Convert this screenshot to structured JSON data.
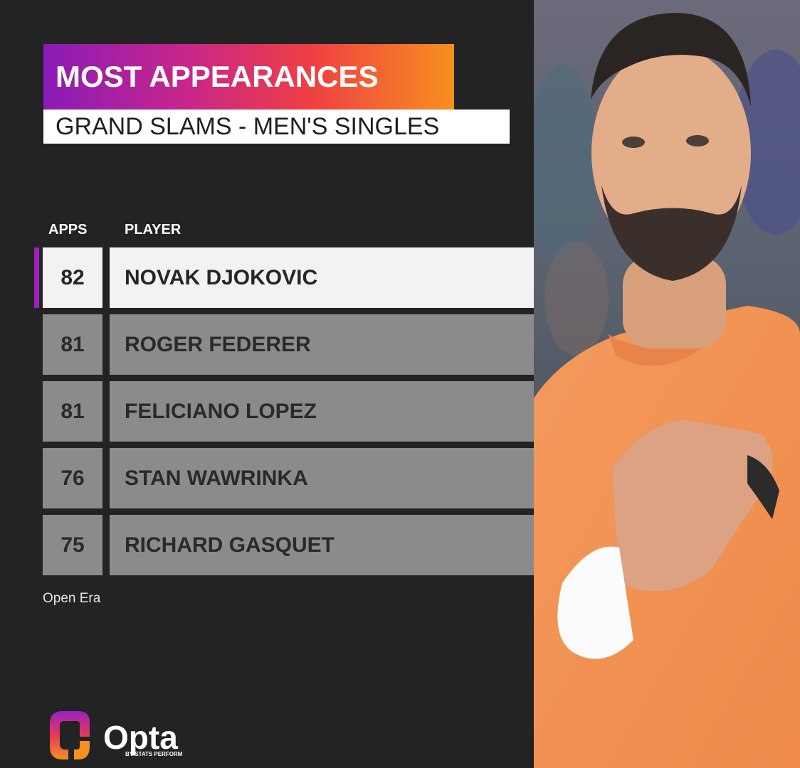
{
  "header": {
    "title": "MOST APPEARANCES",
    "subtitle": "GRAND SLAMS - MEN'S SINGLES"
  },
  "columns": {
    "apps": "APPS",
    "player": "PLAYER"
  },
  "footnote": "Open Era",
  "brand": {
    "name": "Opta",
    "tagline": "BY STATS PERFORM"
  },
  "colors": {
    "highlight_accent": "#9a20c0",
    "title_gradient": [
      "#8a1bb8",
      "#c8268a",
      "#ef3f43",
      "#f7901e"
    ]
  },
  "chart_data": {
    "type": "table",
    "title": "MOST APPEARANCES",
    "subtitle": "GRAND SLAMS - MEN'S SINGLES",
    "columns": [
      "APPS",
      "PLAYER"
    ],
    "rows": [
      {
        "apps": "82",
        "player": "NOVAK DJOKOVIC",
        "highlighted": true
      },
      {
        "apps": "81",
        "player": "ROGER FEDERER",
        "highlighted": false
      },
      {
        "apps": "81",
        "player": "FELICIANO LOPEZ",
        "highlighted": false
      },
      {
        "apps": "76",
        "player": "STAN WAWRINKA",
        "highlighted": false
      },
      {
        "apps": "75",
        "player": "RICHARD GASQUET",
        "highlighted": false
      }
    ],
    "note": "Open Era"
  }
}
